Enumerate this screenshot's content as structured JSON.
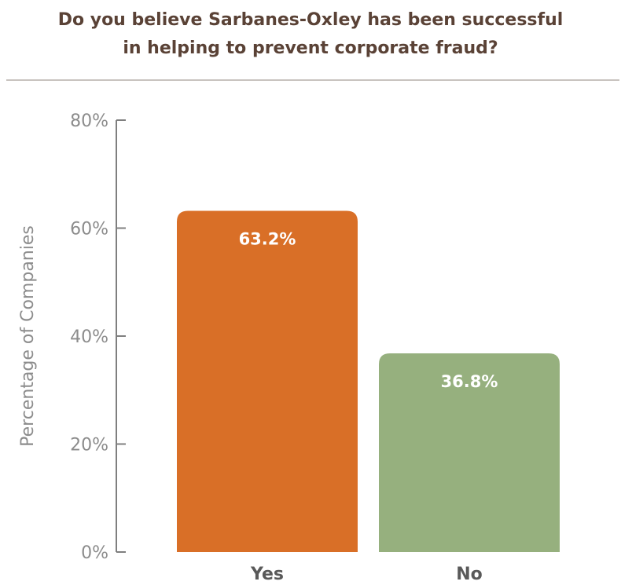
{
  "chart_data": {
    "type": "bar",
    "title_lines": [
      "Do you believe Sarbanes-Oxley has been successful",
      "in helping to prevent corporate fraud?"
    ],
    "ylabel": "Percentage of Companies",
    "xlabel": "",
    "categories": [
      "Yes",
      "No"
    ],
    "values": [
      63.2,
      36.8
    ],
    "data_labels": [
      "63.2%",
      "36.8%"
    ],
    "colors": [
      "#d96f27",
      "#96b07e"
    ],
    "ylim": [
      0,
      80
    ],
    "yticks": [
      0,
      20,
      40,
      60,
      80
    ],
    "ytick_labels": [
      "0%",
      "20%",
      "40%",
      "60%",
      "80%"
    ],
    "grid": false,
    "legend": "none"
  }
}
